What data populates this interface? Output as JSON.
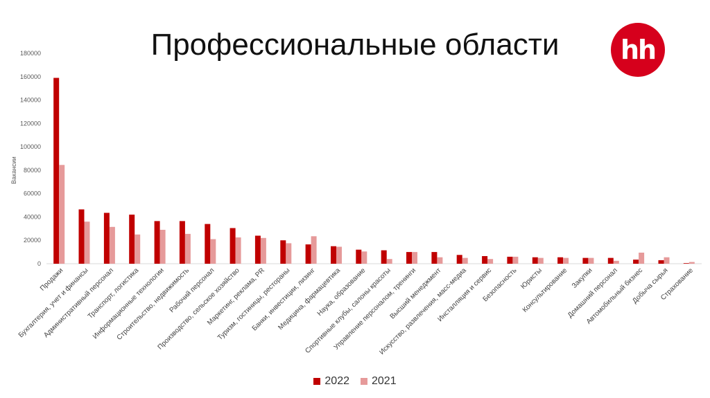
{
  "slide": {
    "title": "Профессиональные области",
    "logo_text": "hh"
  },
  "chart_data": {
    "type": "bar",
    "title": "",
    "ylabel": "Вакансии",
    "xlabel": "",
    "ylim": [
      0,
      180000
    ],
    "yticks": [
      0,
      20000,
      40000,
      60000,
      80000,
      100000,
      120000,
      140000,
      160000,
      180000
    ],
    "grid": false,
    "legend_position": "bottom",
    "categories": [
      "Продажи",
      "Бухгалтерия,  учет и финансы",
      "Административный персонал",
      "Транспорт, логистика",
      "Информационные технологии",
      "Строительство, недвижимость",
      "Рабочий персонал",
      "Производство, сельское хозяйство",
      "Маркетинг, реклама, PR",
      "Туризм, гостиницы, рестораны",
      "Банки, инвестиции, лизинг",
      "Медицина, фармацевтика",
      "Наука, образование",
      "Спортивные клубы, салоны красоты",
      "Управление персоналом, тренинги",
      "Высший менеджмент",
      "Искусство, развлечения, масс-медиа",
      "Инсталляция и сервис",
      "Безопасность",
      "Юристы",
      "Консультирование",
      "Закупки",
      "Домашний персонал",
      "Автомобильный бизнес",
      "Добыча сырья",
      "Страхование"
    ],
    "series": [
      {
        "name": "2022",
        "color": "#c00000",
        "values": [
          159000,
          46500,
          43500,
          42000,
          36500,
          36500,
          34000,
          30500,
          24000,
          20000,
          16500,
          15000,
          12000,
          11500,
          10000,
          10000,
          7500,
          6500,
          6000,
          5500,
          5500,
          5000,
          5000,
          3500,
          3000,
          500
        ]
      },
      {
        "name": "2021",
        "color": "#e69a9a",
        "values": [
          84500,
          36000,
          31500,
          25000,
          29000,
          25500,
          21000,
          22500,
          22000,
          17500,
          23500,
          14500,
          10500,
          4000,
          10000,
          5500,
          5000,
          4000,
          6000,
          5000,
          5000,
          5000,
          2500,
          9500,
          5500,
          1500
        ]
      }
    ]
  }
}
